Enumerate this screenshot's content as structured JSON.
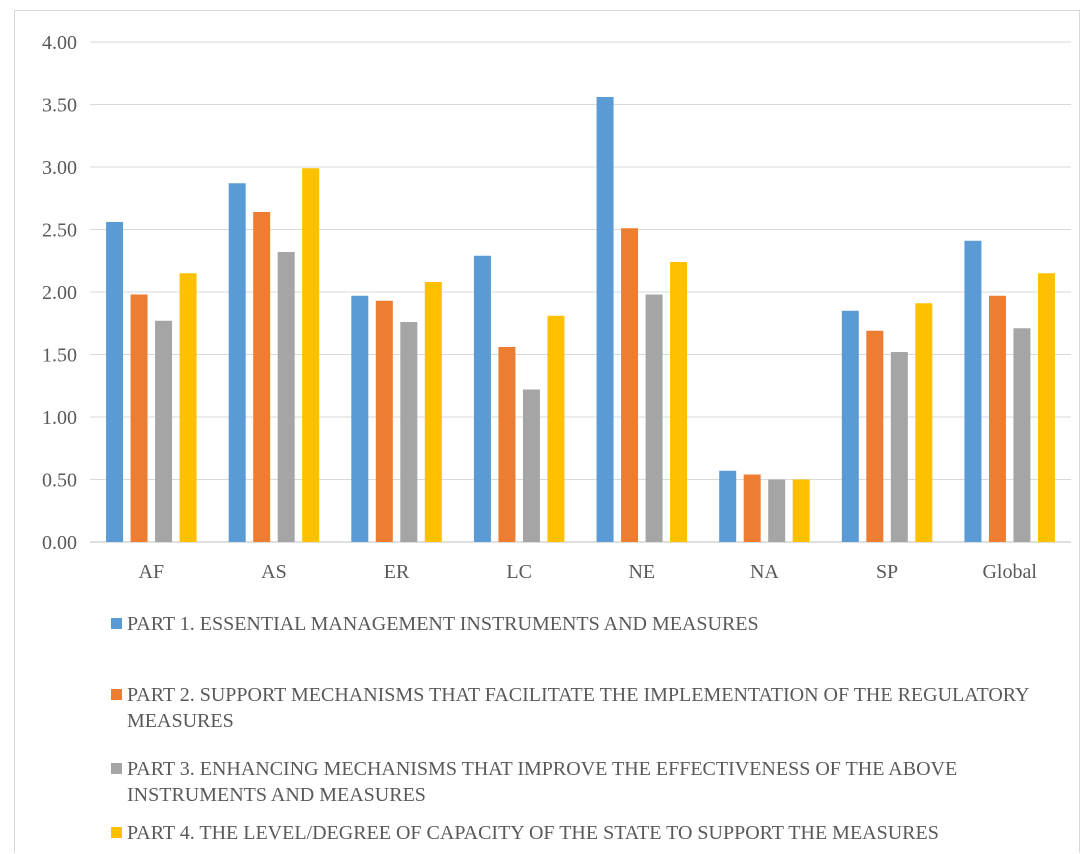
{
  "chart_data": {
    "type": "bar",
    "categories": [
      "AF",
      "AS",
      "ER",
      "LC",
      "NE",
      "NA",
      "SP",
      "Global"
    ],
    "series": [
      {
        "name": "PART 1. ESSENTIAL MANAGEMENT INSTRUMENTS AND MEASURES",
        "color": "#5b9bd5",
        "values": [
          2.56,
          2.87,
          1.97,
          2.29,
          3.56,
          0.57,
          1.85,
          2.41
        ]
      },
      {
        "name": "PART 2. SUPPORT MECHANISMS THAT FACILITATE THE IMPLEMENTATION OF THE REGULATORY MEASURES",
        "color": "#ed7d31",
        "values": [
          1.98,
          2.64,
          1.93,
          1.56,
          2.51,
          0.54,
          1.69,
          1.97
        ]
      },
      {
        "name": "PART 3. ENHANCING MECHANISMS THAT IMPROVE THE EFFECTIVENESS OF THE ABOVE INSTRUMENTS AND MEASURES",
        "color": "#a5a5a5",
        "values": [
          1.77,
          2.32,
          1.76,
          1.22,
          1.98,
          0.5,
          1.52,
          1.71
        ]
      },
      {
        "name": "PART 4. THE LEVEL/DEGREE OF CAPACITY OF THE STATE TO SUPPORT THE MEASURES",
        "color": "#ffc000",
        "values": [
          2.15,
          2.99,
          2.08,
          1.81,
          2.24,
          0.5,
          1.91,
          2.15
        ]
      }
    ],
    "yticks": [
      "0.00",
      "0.50",
      "1.00",
      "1.50",
      "2.00",
      "2.50",
      "3.00",
      "3.50",
      "4.00"
    ],
    "ylim": [
      0,
      4
    ],
    "grid": true,
    "legend_position": "bottom"
  }
}
